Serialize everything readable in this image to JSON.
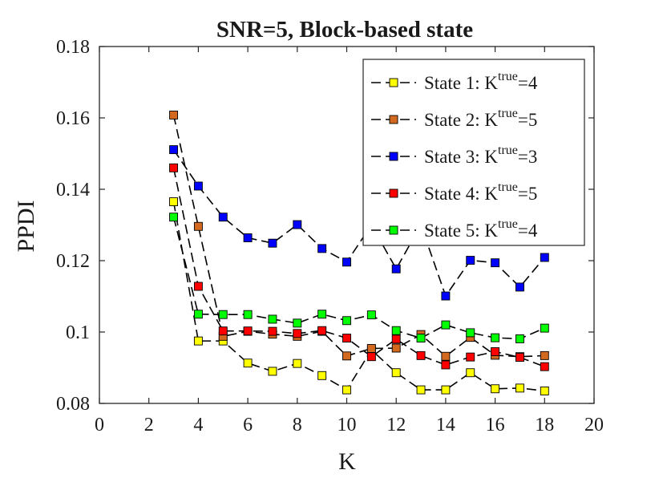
{
  "chart_data": {
    "type": "line",
    "title": "SNR=5, Block-based state",
    "xlabel": "K",
    "ylabel": "PPDI",
    "xlim": [
      0,
      20
    ],
    "ylim": [
      0.08,
      0.18
    ],
    "x_ticks": [
      0,
      2,
      4,
      6,
      8,
      10,
      12,
      14,
      16,
      18,
      20
    ],
    "y_ticks": [
      0.08,
      0.1,
      0.12,
      0.14,
      0.16,
      0.18
    ],
    "x_tick_labels": [
      "0",
      "2",
      "4",
      "6",
      "8",
      "10",
      "12",
      "14",
      "16",
      "18",
      "20"
    ],
    "y_tick_labels": [
      "0.08",
      "0.1",
      "0.12",
      "0.14",
      "0.16",
      "0.18"
    ],
    "grid": false,
    "legend_position": "top-right",
    "line_style": "dashed",
    "line_color": "#000000",
    "marker": "square",
    "x": [
      3,
      4,
      5,
      6,
      7,
      8,
      9,
      10,
      11,
      12,
      13,
      14,
      15,
      16,
      17,
      18
    ],
    "series": [
      {
        "name": "State 1: K^true=4",
        "label_base": "State 1: K",
        "label_sup": "true",
        "label_tail": "=4",
        "color": "#ffff00",
        "values": [
          0.1365,
          0.0975,
          0.0975,
          0.0913,
          0.089,
          0.0912,
          0.0878,
          0.0838,
          0.095,
          0.0886,
          0.0838,
          0.0838,
          0.0886,
          0.0841,
          0.0843,
          0.0835
        ]
      },
      {
        "name": "State 2: K^true=5",
        "label_base": "State 2: K",
        "label_sup": "true",
        "label_tail": "=5",
        "color": "#d2691e",
        "values": [
          0.1608,
          0.1296,
          0.0988,
          0.1002,
          0.0994,
          0.0988,
          0.1002,
          0.0933,
          0.0954,
          0.0955,
          0.0993,
          0.0932,
          0.0985,
          0.0935,
          0.0931,
          0.0934
        ]
      },
      {
        "name": "State 3: K^true=3",
        "label_base": "State 3: K",
        "label_sup": "true",
        "label_tail": "=3",
        "color": "#0000ff",
        "values": [
          0.1511,
          0.1409,
          0.1322,
          0.1264,
          0.1249,
          0.1301,
          0.1234,
          0.1196,
          0.13,
          0.1177,
          0.13,
          0.1101,
          0.1201,
          0.1194,
          0.1126,
          0.1209
        ]
      },
      {
        "name": "State 4: K^true=5",
        "label_base": "State 4: K",
        "label_sup": "true",
        "label_tail": "=5",
        "color": "#ff0000",
        "values": [
          0.146,
          0.1128,
          0.1003,
          0.1003,
          0.1002,
          0.0996,
          0.1004,
          0.0983,
          0.0931,
          0.098,
          0.0934,
          0.0908,
          0.093,
          0.0945,
          0.0929,
          0.0903
        ]
      },
      {
        "name": "State 5: K^true=4",
        "label_base": "State 5: K",
        "label_sup": "true",
        "label_tail": "=4",
        "color": "#00ff00",
        "values": [
          0.1322,
          0.105,
          0.1049,
          0.1049,
          0.1036,
          0.1025,
          0.105,
          0.1032,
          0.1048,
          0.1004,
          0.0983,
          0.102,
          0.0998,
          0.0984,
          0.0981,
          0.1011
        ]
      }
    ]
  }
}
